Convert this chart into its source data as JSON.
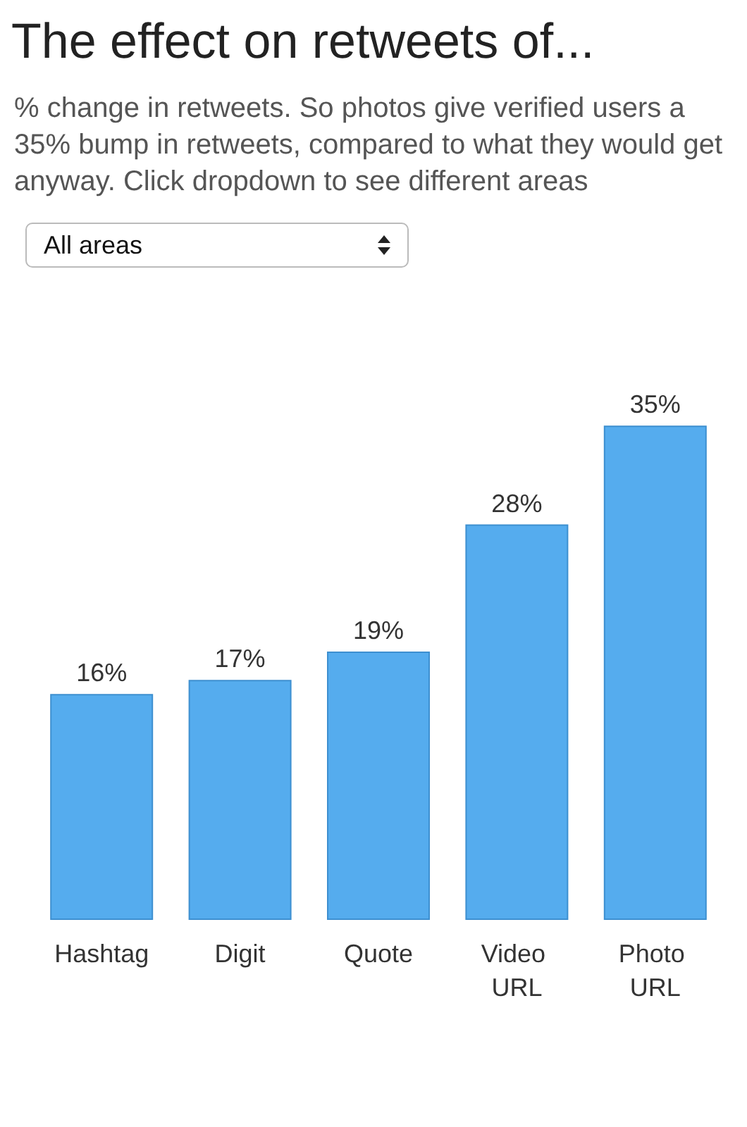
{
  "chart_data": {
    "type": "bar",
    "title": "The effect on retweets of...",
    "subtitle": "% change in retweets. So photos give verified users a 35% bump in retweets, compared to what they would get anyway. Click dropdown to see different areas",
    "annotations": [
      "All areas"
    ],
    "categories": [
      "Hashtag",
      "Digit",
      "Quote",
      "Video URL",
      "Photo URL"
    ],
    "values": [
      16,
      17,
      19,
      28,
      35
    ],
    "value_labels": [
      "16%",
      "17%",
      "19%",
      "28%",
      "35%"
    ],
    "color": "#55acee"
  }
}
